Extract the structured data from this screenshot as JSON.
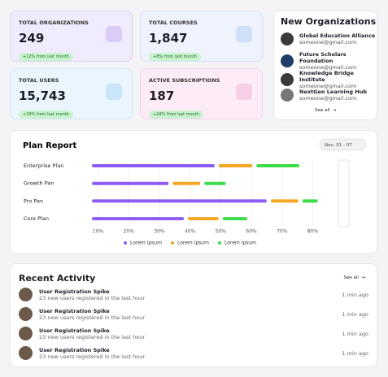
{
  "stats": [
    {
      "label": "TOTAL ORGANIZATIONS",
      "value": "249",
      "change": "+12% from last month"
    },
    {
      "label": "TOTAL COURSES",
      "value": "1,847",
      "change": "+8% from last month"
    },
    {
      "label": "TOTAL USERS",
      "value": "15,743",
      "change": "+24% from last month"
    },
    {
      "label": "ACTIVE SUBSCRIPTIONS",
      "value": "187",
      "change": "+24% from last month"
    }
  ],
  "new_organizations": {
    "title": "New Organizations",
    "items": [
      {
        "name": "Global Education Alliance",
        "email": "someone@gmail.com"
      },
      {
        "name": "Future Scholars Foundation",
        "email": "someone@gmail.com"
      },
      {
        "name": "Knowledge Bridge Institute",
        "email": "someone@gmail.com"
      },
      {
        "name": "NextGen Learning Hub",
        "email": "someone@gmail.com"
      }
    ],
    "see_all": "See all"
  },
  "plan_report": {
    "type": "bar",
    "title": "Plan Report",
    "date_range": "Nov, 01 - 07",
    "categories": [
      "Enterprise Plan",
      "Growth Pan",
      "Pro Pan",
      "Core Plan"
    ],
    "series": [
      {
        "name": "Lorem ipsum",
        "color": "#8b5cf6",
        "values": [
          40,
          25,
          57,
          30
        ]
      },
      {
        "name": "Lorem ipsum",
        "color": "#f5a623",
        "values": [
          11,
          9,
          9,
          10
        ]
      },
      {
        "name": "Lorem ipsum",
        "color": "#3ddc4a",
        "values": [
          14,
          7,
          5,
          8
        ]
      }
    ],
    "xlim": [
      8,
      82
    ],
    "xticks": [
      {
        "value": 10,
        "label": "10%"
      },
      {
        "value": 20,
        "label": "20%"
      },
      {
        "value": 30,
        "label": "30%"
      },
      {
        "value": 40,
        "label": "40%"
      },
      {
        "value": 50,
        "label": "50%"
      },
      {
        "value": 60,
        "label": "60%"
      },
      {
        "value": 70,
        "label": "70%"
      },
      {
        "value": 80,
        "label": "80%"
      }
    ],
    "grid": true
  },
  "recent_activity": {
    "title": "Recent Activity",
    "see_all": "See all",
    "items": [
      {
        "title": "User Registration Spike",
        "detail": "23 new users registered in the last hour",
        "time": "1 min ago"
      },
      {
        "title": "User Registration Spike",
        "detail": "23 new users registered in the last hour",
        "time": "1 min ago"
      },
      {
        "title": "User Registration Spike",
        "detail": "23 new users registered in the last hour",
        "time": "1 min ago"
      },
      {
        "title": "User Registration Spike",
        "detail": "23 new users registered in the last hour",
        "time": "1 min ago"
      }
    ]
  }
}
